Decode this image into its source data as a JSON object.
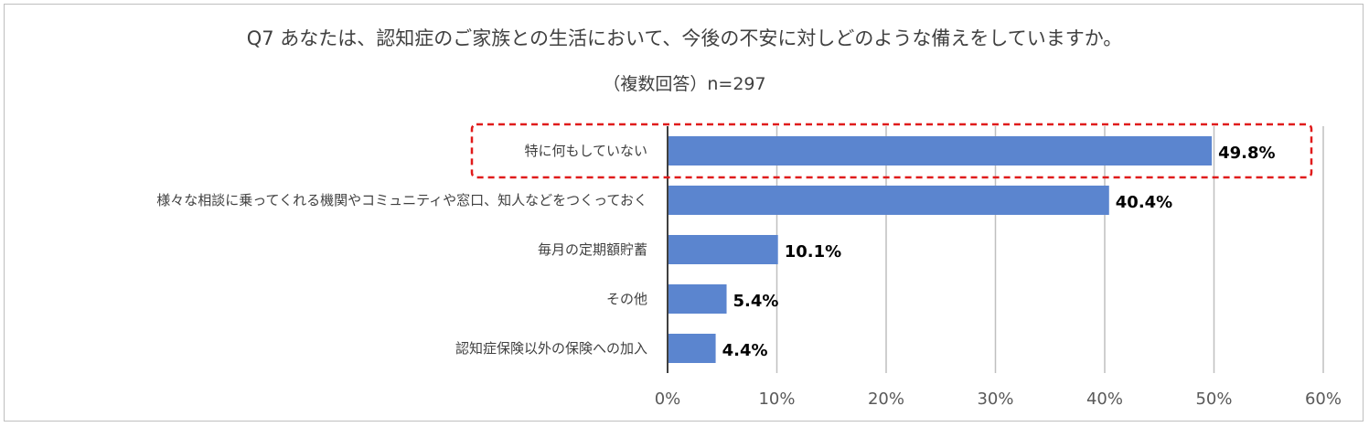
{
  "title": "Q7 あなたは、認知症のご家族との生活において、今後の不安に対しどのような備えをしていますか。",
  "subtitle": "（複数回答）n=297",
  "chart_data": {
    "type": "bar",
    "orientation": "horizontal",
    "title": "Q7 あなたは、認知症のご家族との生活において、今後の不安に対しどのような備えをしていますか。",
    "subtitle": "（複数回答）n=297",
    "categories": [
      "特に何もしていない",
      "様々な相談に乗ってくれる機関やコミュニティや窓口、知人などをつくっておく",
      "毎月の定期額貯蓄",
      "その他",
      "認知症保険以外の保険への加入"
    ],
    "values": [
      49.8,
      40.4,
      10.1,
      5.4,
      4.4
    ],
    "value_labels": [
      "49.8%",
      "40.4%",
      "10.1%",
      "5.4%",
      "4.4%"
    ],
    "xlim": [
      0,
      60
    ],
    "x_ticks": [
      "0%",
      "10%",
      "20%",
      "30%",
      "40%",
      "50%",
      "60%"
    ],
    "grid": "vertical",
    "bar_color": "#5b85cf",
    "highlight": {
      "category_index": 0,
      "style": "dashed",
      "color": "#e01b1b"
    }
  }
}
